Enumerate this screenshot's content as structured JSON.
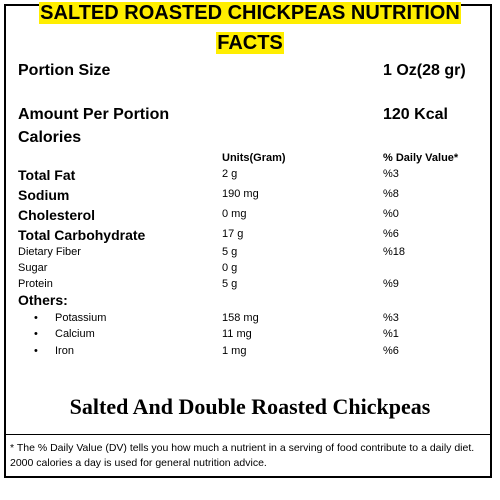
{
  "title": {
    "line1": "SALTED ROASTED CHICKPEAS NUTRITION",
    "line2": "FACTS"
  },
  "portion": {
    "label": "Portion Size",
    "value": "1 Oz(28 gr)"
  },
  "amount": {
    "label_line1": "Amount Per Portion",
    "label_line2": "Calories",
    "value": "120 Kcal"
  },
  "columns": {
    "units": "Units(Gram)",
    "dv": "% Daily Value*"
  },
  "nutrients": [
    {
      "name": "Total Fat",
      "units": "2 g",
      "dv": "%3"
    },
    {
      "name": "Sodium",
      "units": "190 mg",
      "dv": "%8"
    },
    {
      "name": "Cholesterol",
      "units": "0 mg",
      "dv": "%0"
    },
    {
      "name": "Total Carbohydrate",
      "units": "17 g",
      "dv": "%6"
    },
    {
      "name": "Dietary Fiber",
      "units": "5 g",
      "dv": "%18"
    },
    {
      "name": "Sugar",
      "units": "0 g",
      "dv": ""
    },
    {
      "name": "Protein",
      "units": "5 g",
      "dv": "%9"
    }
  ],
  "others": {
    "label": "Others:",
    "items": [
      {
        "name": "Potassium",
        "units": "158 mg",
        "dv": "%3"
      },
      {
        "name": "Calcium",
        "units": "11 mg",
        "dv": "%1"
      },
      {
        "name": "Iron",
        "units": "1 mg",
        "dv": "%6"
      }
    ]
  },
  "bullet_char": "•",
  "product_name": "Salted And Double Roasted Chickpeas",
  "footnote": "* The % Daily Value (DV) tells you how much a nutrient in a serving of food contribute to a daily diet. 2000 calories a day is used for general nutrition advice.",
  "colors": {
    "highlight": "#ffee00",
    "text": "#000000",
    "border": "#000000"
  }
}
